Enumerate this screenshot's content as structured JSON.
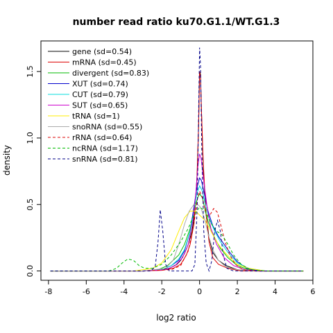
{
  "chart_data": {
    "type": "line",
    "title": "number read ratio ku70.G1.1/WT.G1.3",
    "xlabel": "log2 ratio",
    "ylabel": "density",
    "xlim": [
      -8.4,
      6.0
    ],
    "ylim": [
      -0.07,
      1.73
    ],
    "x_ticks": [
      -8,
      -6,
      -4,
      -2,
      0,
      2,
      4,
      6
    ],
    "y_ticks": [
      0.0,
      0.5,
      1.0,
      1.5
    ],
    "y_tick_labels": [
      "0.0",
      "0.5",
      "1.0",
      "1.5"
    ],
    "grid": false,
    "legend_position": "top-left",
    "series": [
      {
        "name": "gene (sd=0.54)",
        "color": "#000000",
        "dash": "solid",
        "points": [
          [
            -7.9,
            0
          ],
          [
            -3,
            0
          ],
          [
            -2.2,
            0.005
          ],
          [
            -1.6,
            0.02
          ],
          [
            -1.2,
            0.05
          ],
          [
            -1.0,
            0.08
          ],
          [
            -0.8,
            0.13
          ],
          [
            -0.6,
            0.2
          ],
          [
            -0.4,
            0.3
          ],
          [
            -0.25,
            0.45
          ],
          [
            -0.12,
            0.75
          ],
          [
            -0.05,
            1.1
          ],
          [
            0.0,
            1.5
          ],
          [
            0.05,
            1.48
          ],
          [
            0.1,
            1.2
          ],
          [
            0.2,
            0.75
          ],
          [
            0.35,
            0.42
          ],
          [
            0.5,
            0.25
          ],
          [
            0.7,
            0.14
          ],
          [
            1.0,
            0.08
          ],
          [
            1.4,
            0.04
          ],
          [
            2.0,
            0.01
          ],
          [
            3.0,
            0
          ],
          [
            5.5,
            0
          ]
        ]
      },
      {
        "name": "mRNA (sd=0.45)",
        "color": "#dd0000",
        "dash": "solid",
        "points": [
          [
            -7.9,
            0
          ],
          [
            -3,
            0
          ],
          [
            -2.0,
            0.005
          ],
          [
            -1.4,
            0.02
          ],
          [
            -1.0,
            0.05
          ],
          [
            -0.7,
            0.12
          ],
          [
            -0.5,
            0.2
          ],
          [
            -0.3,
            0.35
          ],
          [
            -0.15,
            0.65
          ],
          [
            -0.05,
            1.1
          ],
          [
            0.0,
            1.5
          ],
          [
            0.05,
            1.45
          ],
          [
            0.1,
            1.2
          ],
          [
            0.2,
            0.8
          ],
          [
            0.35,
            0.42
          ],
          [
            0.5,
            0.22
          ],
          [
            0.7,
            0.1
          ],
          [
            1.0,
            0.05
          ],
          [
            1.5,
            0.02
          ],
          [
            2.2,
            0
          ],
          [
            5.5,
            0
          ]
        ]
      },
      {
        "name": "divergent (sd=0.83)",
        "color": "#00bb00",
        "dash": "solid",
        "points": [
          [
            -7.9,
            0
          ],
          [
            -3,
            0
          ],
          [
            -2.2,
            0.01
          ],
          [
            -1.7,
            0.04
          ],
          [
            -1.4,
            0.08
          ],
          [
            -1.1,
            0.12
          ],
          [
            -0.8,
            0.2
          ],
          [
            -0.5,
            0.32
          ],
          [
            -0.3,
            0.45
          ],
          [
            -0.1,
            0.55
          ],
          [
            0.0,
            0.58
          ],
          [
            0.15,
            0.55
          ],
          [
            0.3,
            0.45
          ],
          [
            0.5,
            0.35
          ],
          [
            0.8,
            0.25
          ],
          [
            1.1,
            0.17
          ],
          [
            1.5,
            0.1
          ],
          [
            2.0,
            0.04
          ],
          [
            2.6,
            0.01
          ],
          [
            3.5,
            0
          ],
          [
            5.5,
            0
          ]
        ]
      },
      {
        "name": "XUT (sd=0.74)",
        "color": "#0000cc",
        "dash": "solid",
        "points": [
          [
            -7.9,
            0
          ],
          [
            -3,
            0
          ],
          [
            -2.0,
            0.01
          ],
          [
            -1.5,
            0.04
          ],
          [
            -1.1,
            0.08
          ],
          [
            -0.8,
            0.15
          ],
          [
            -0.5,
            0.3
          ],
          [
            -0.3,
            0.48
          ],
          [
            -0.15,
            0.62
          ],
          [
            0.0,
            0.7
          ],
          [
            0.1,
            0.68
          ],
          [
            0.25,
            0.58
          ],
          [
            0.45,
            0.45
          ],
          [
            0.7,
            0.34
          ],
          [
            1.0,
            0.26
          ],
          [
            1.3,
            0.2
          ],
          [
            1.6,
            0.14
          ],
          [
            2.0,
            0.07
          ],
          [
            2.5,
            0.02
          ],
          [
            3.2,
            0
          ],
          [
            5.5,
            0
          ]
        ]
      },
      {
        "name": "CUT (sd=0.79)",
        "color": "#00dddd",
        "dash": "solid",
        "points": [
          [
            -7.9,
            0
          ],
          [
            -3,
            0
          ],
          [
            -2.0,
            0.01
          ],
          [
            -1.5,
            0.04
          ],
          [
            -1.1,
            0.09
          ],
          [
            -0.8,
            0.16
          ],
          [
            -0.5,
            0.3
          ],
          [
            -0.3,
            0.45
          ],
          [
            -0.15,
            0.58
          ],
          [
            0.0,
            0.64
          ],
          [
            0.15,
            0.6
          ],
          [
            0.3,
            0.5
          ],
          [
            0.5,
            0.4
          ],
          [
            0.8,
            0.3
          ],
          [
            1.1,
            0.22
          ],
          [
            1.5,
            0.14
          ],
          [
            2.0,
            0.06
          ],
          [
            2.6,
            0.02
          ],
          [
            3.5,
            0
          ],
          [
            5.5,
            0
          ]
        ]
      },
      {
        "name": "SUT (sd=0.65)",
        "color": "#cc00cc",
        "dash": "solid",
        "points": [
          [
            -7.9,
            0
          ],
          [
            -3,
            0
          ],
          [
            -1.8,
            0.01
          ],
          [
            -1.3,
            0.04
          ],
          [
            -0.9,
            0.1
          ],
          [
            -0.6,
            0.2
          ],
          [
            -0.35,
            0.38
          ],
          [
            -0.2,
            0.58
          ],
          [
            -0.08,
            0.8
          ],
          [
            0.0,
            0.88
          ],
          [
            0.08,
            0.85
          ],
          [
            0.2,
            0.7
          ],
          [
            0.4,
            0.48
          ],
          [
            0.6,
            0.32
          ],
          [
            0.9,
            0.2
          ],
          [
            1.3,
            0.1
          ],
          [
            1.8,
            0.04
          ],
          [
            2.4,
            0.01
          ],
          [
            3.2,
            0
          ],
          [
            5.5,
            0
          ]
        ]
      },
      {
        "name": "tRNA (sd=1)",
        "color": "#ffee00",
        "dash": "solid",
        "points": [
          [
            -7.9,
            0
          ],
          [
            -3.5,
            0
          ],
          [
            -2.5,
            0.02
          ],
          [
            -2.0,
            0.06
          ],
          [
            -1.5,
            0.16
          ],
          [
            -1.1,
            0.3
          ],
          [
            -0.8,
            0.4
          ],
          [
            -0.5,
            0.45
          ],
          [
            -0.2,
            0.45
          ],
          [
            0.0,
            0.42
          ],
          [
            0.3,
            0.38
          ],
          [
            0.6,
            0.3
          ],
          [
            0.9,
            0.22
          ],
          [
            1.2,
            0.16
          ],
          [
            1.6,
            0.1
          ],
          [
            2.0,
            0.05
          ],
          [
            2.6,
            0.02
          ],
          [
            3.5,
            0
          ],
          [
            5.5,
            0
          ]
        ]
      },
      {
        "name": "snoRNA (sd=0.55)",
        "color": "#aaaaaa",
        "dash": "solid",
        "points": [
          [
            -7.9,
            0
          ],
          [
            -3,
            0
          ],
          [
            -1.8,
            0.02
          ],
          [
            -1.4,
            0.08
          ],
          [
            -1.1,
            0.2
          ],
          [
            -0.8,
            0.35
          ],
          [
            -0.55,
            0.45
          ],
          [
            -0.3,
            0.5
          ],
          [
            -0.1,
            0.5
          ],
          [
            0.05,
            0.48
          ],
          [
            0.25,
            0.4
          ],
          [
            0.45,
            0.28
          ],
          [
            0.7,
            0.16
          ],
          [
            1.0,
            0.08
          ],
          [
            1.4,
            0.03
          ],
          [
            2.0,
            0.01
          ],
          [
            2.8,
            0
          ],
          [
            5.5,
            0
          ]
        ]
      },
      {
        "name": "rRNA (sd=0.64)",
        "color": "#dd0000",
        "dash": "dashed",
        "points": [
          [
            -7.9,
            0
          ],
          [
            -3,
            0
          ],
          [
            -1.5,
            0.01
          ],
          [
            -1.0,
            0.04
          ],
          [
            -0.6,
            0.15
          ],
          [
            -0.3,
            0.35
          ],
          [
            -0.1,
            0.55
          ],
          [
            0.0,
            0.6
          ],
          [
            0.15,
            0.55
          ],
          [
            0.35,
            0.42
          ],
          [
            0.55,
            0.42
          ],
          [
            0.75,
            0.47
          ],
          [
            0.95,
            0.44
          ],
          [
            1.15,
            0.33
          ],
          [
            1.35,
            0.22
          ],
          [
            1.6,
            0.12
          ],
          [
            1.9,
            0.05
          ],
          [
            2.3,
            0.01
          ],
          [
            3.0,
            0
          ],
          [
            5.5,
            0
          ]
        ]
      },
      {
        "name": "ncRNA (sd=1.17)",
        "color": "#00bb00",
        "dash": "dashed",
        "points": [
          [
            -7.9,
            0
          ],
          [
            -4.8,
            0
          ],
          [
            -4.4,
            0.02
          ],
          [
            -4.1,
            0.06
          ],
          [
            -3.8,
            0.09
          ],
          [
            -3.5,
            0.08
          ],
          [
            -3.2,
            0.04
          ],
          [
            -2.9,
            0.02
          ],
          [
            -2.5,
            0.02
          ],
          [
            -2.0,
            0.05
          ],
          [
            -1.5,
            0.12
          ],
          [
            -1.0,
            0.22
          ],
          [
            -0.6,
            0.32
          ],
          [
            -0.3,
            0.42
          ],
          [
            0.0,
            0.48
          ],
          [
            0.3,
            0.45
          ],
          [
            0.6,
            0.36
          ],
          [
            0.9,
            0.3
          ],
          [
            1.2,
            0.27
          ],
          [
            1.5,
            0.2
          ],
          [
            1.8,
            0.12
          ],
          [
            2.2,
            0.05
          ],
          [
            2.7,
            0.01
          ],
          [
            3.5,
            0
          ],
          [
            5.5,
            0
          ]
        ]
      },
      {
        "name": "snRNA (sd=0.81)",
        "color": "#000088",
        "dash": "dashed",
        "points": [
          [
            -7.9,
            0
          ],
          [
            -2.6,
            0
          ],
          [
            -2.35,
            0.03
          ],
          [
            -2.2,
            0.22
          ],
          [
            -2.08,
            0.46
          ],
          [
            -1.95,
            0.3
          ],
          [
            -1.8,
            0.05
          ],
          [
            -1.6,
            0
          ],
          [
            -0.4,
            0
          ],
          [
            -0.25,
            0.05
          ],
          [
            -0.12,
            0.5
          ],
          [
            -0.04,
            1.3
          ],
          [
            0.0,
            1.68
          ],
          [
            0.05,
            1.55
          ],
          [
            0.12,
            0.9
          ],
          [
            0.22,
            0.3
          ],
          [
            0.35,
            0.06
          ],
          [
            0.5,
            0
          ],
          [
            0.65,
            0.08
          ],
          [
            0.8,
            0.3
          ],
          [
            0.95,
            0.38
          ],
          [
            1.1,
            0.3
          ],
          [
            1.25,
            0.12
          ],
          [
            1.45,
            0.02
          ],
          [
            1.8,
            0
          ],
          [
            5.5,
            0
          ]
        ]
      }
    ]
  }
}
